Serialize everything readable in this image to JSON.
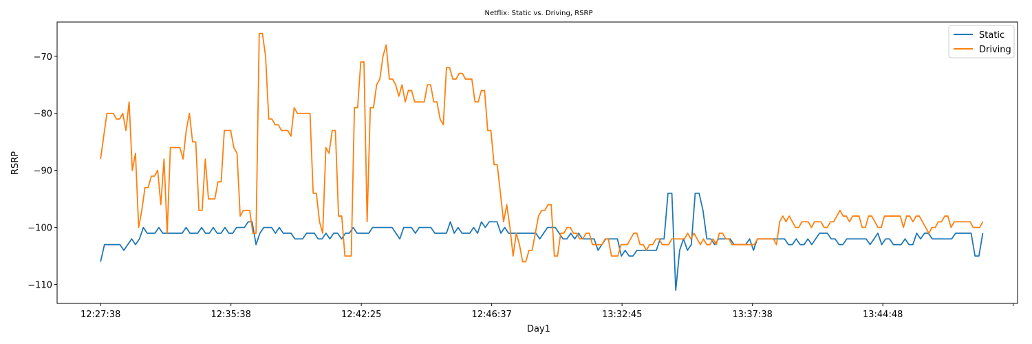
{
  "chart_data": {
    "type": "line",
    "title": "Netflix: Static vs. Driving, RSRP",
    "xlabel": "Day1",
    "ylabel": "RSRP",
    "x_tick_labels": [
      "12:27:38",
      "12:35:38",
      "12:42:25",
      "12:46:37",
      "13:32:45",
      "13:37:38",
      "13:44:48",
      ""
    ],
    "x_tick_positions": [
      0,
      30,
      60,
      90,
      120,
      150,
      180,
      210
    ],
    "xlim": [
      -10,
      211
    ],
    "y_ticks": [
      -110,
      -100,
      -90,
      -80,
      -70
    ],
    "y_tick_labels": [
      "−110",
      "−100",
      "−90",
      "−80",
      "−70"
    ],
    "ylim": [
      -113.3,
      -64.0
    ],
    "grid": false,
    "legend_position": "top-right",
    "series": [
      {
        "name": "Static",
        "color": "#1f77b4",
        "values": [
          -106,
          -103,
          -103,
          -103,
          -103,
          -103,
          -104,
          -103,
          -102,
          -103,
          -102,
          -100,
          -101,
          -101,
          -101,
          -100,
          -101,
          -101,
          -101,
          -101,
          -101,
          -101,
          -100,
          -101,
          -101,
          -101,
          -100,
          -101,
          -101,
          -100,
          -101,
          -101,
          -100,
          -101,
          -101,
          -100,
          -100,
          -100,
          -99,
          -99,
          -103,
          -101,
          -100,
          -100,
          -100,
          -101,
          -100,
          -101,
          -101,
          -101,
          -102,
          -102,
          -102,
          -101,
          -101,
          -101,
          -102,
          -102,
          -101,
          -102,
          -101,
          -101,
          -102,
          -101,
          -101,
          -100,
          -101,
          -101,
          -101,
          -101,
          -100,
          -100,
          -100,
          -100,
          -100,
          -100,
          -101,
          -102,
          -100,
          -100,
          -100,
          -101,
          -100,
          -100,
          -100,
          -100,
          -101,
          -101,
          -101,
          -101,
          -99,
          -101,
          -100,
          -101,
          -101,
          -101,
          -100,
          -101,
          -99,
          -100,
          -99,
          -99,
          -99,
          -101,
          -100,
          -101,
          -101,
          -101,
          -101,
          -101,
          -101,
          -101,
          -101,
          -102,
          -101,
          -100,
          -100,
          -100,
          -101,
          -102,
          -102,
          -101,
          -102,
          -101,
          -102,
          -102,
          -102,
          -102,
          -104,
          -103,
          -102,
          -102,
          -102,
          -102,
          -105,
          -104,
          -105,
          -105,
          -104,
          -104,
          -104,
          -104,
          -104,
          -104,
          -102,
          -102,
          -94,
          -94,
          -111,
          -104,
          -102,
          -104,
          -103,
          -94,
          -94,
          -97,
          -102,
          -102,
          -103,
          -102,
          -102,
          -102,
          -102,
          -103,
          -103,
          -103,
          -103,
          -102,
          -104,
          -102,
          -102,
          -102,
          -102,
          -102,
          -102,
          -102,
          -102,
          -103,
          -103,
          -102,
          -103,
          -103,
          -102,
          -103,
          -102,
          -101,
          -101,
          -101,
          -102,
          -102,
          -103,
          -103,
          -102,
          -102,
          -102,
          -102,
          -102,
          -102,
          -103,
          -102,
          -101,
          -103,
          -102,
          -102,
          -103,
          -103,
          -103,
          -102,
          -103,
          -103,
          -101,
          -102,
          -101,
          -101,
          -102,
          -102,
          -102,
          -102,
          -102,
          -102,
          -101,
          -101,
          -101,
          -101,
          -101,
          -105,
          -105,
          -101
        ]
      },
      {
        "name": "Driving",
        "color": "#ff7f0e",
        "values": [
          -88,
          -84,
          -80,
          -80,
          -80,
          -81,
          -81,
          -80,
          -83,
          -78,
          -90,
          -87,
          -100,
          -97,
          -93,
          -93,
          -91,
          -91,
          -90,
          -96,
          -88,
          -101,
          -86,
          -86,
          -86,
          -86,
          -88,
          -83,
          -80,
          -85,
          -85,
          -97,
          -97,
          -88,
          -95,
          -95,
          -95,
          -92,
          -92,
          -83,
          -83,
          -83,
          -86,
          -87,
          -98,
          -97,
          -97,
          -97,
          -101,
          -101,
          -66,
          -66,
          -70,
          -81,
          -81,
          -82,
          -82,
          -83,
          -83,
          -83,
          -84,
          -79,
          -80,
          -80,
          -80,
          -80,
          -80,
          -94,
          -94,
          -99,
          -101,
          -86,
          -87,
          -83,
          -83,
          -98,
          -98,
          -105,
          -105,
          -105,
          -79,
          -79,
          -71,
          -71,
          -99,
          -79,
          -79,
          -75,
          -74,
          -70,
          -68,
          -74,
          -74,
          -75,
          -77,
          -75,
          -78,
          -76,
          -76,
          -78,
          -78,
          -78,
          -78,
          -75,
          -75,
          -78,
          -78,
          -81,
          -82,
          -72,
          -72,
          -74,
          -74,
          -73,
          -73,
          -74,
          -74,
          -74,
          -78,
          -78,
          -76,
          -76,
          -83,
          -83,
          -89,
          -89,
          -94,
          -99,
          -96,
          -100,
          -105,
          -101,
          -103,
          -106,
          -106,
          -104,
          -104,
          -101,
          -98,
          -97,
          -97,
          -96,
          -96,
          -105,
          -105,
          -101,
          -101,
          -100,
          -100,
          -101,
          -101,
          -102,
          -102,
          -101,
          -101,
          -103,
          -103,
          -103,
          -103,
          -102,
          -102,
          -105,
          -105,
          -105,
          -103,
          -103,
          -103,
          -102,
          -101,
          -101,
          -103,
          -103,
          -104,
          -103,
          -103,
          -102,
          -102,
          -103,
          -103,
          -103,
          -102,
          -102,
          -102,
          -102,
          -102,
          -101,
          -102,
          -101,
          -102,
          -103,
          -102,
          -103,
          -103,
          -102,
          -103,
          -101,
          -101,
          -102,
          -102,
          -103,
          -103,
          -103,
          -103,
          -103,
          -103,
          -103,
          -103,
          -102,
          -102,
          -102,
          -102,
          -102,
          -102,
          -103,
          -99,
          -98,
          -99,
          -98,
          -99,
          -100,
          -100,
          -99,
          -99,
          -99,
          -100,
          -99,
          -99,
          -99,
          -100,
          -100,
          -99,
          -99,
          -98,
          -97,
          -98,
          -98,
          -99,
          -98,
          -98,
          -98,
          -100,
          -100,
          -98,
          -98,
          -99,
          -100,
          -100,
          -98,
          -98,
          -98,
          -98,
          -98,
          -98,
          -100,
          -98,
          -98,
          -99,
          -98,
          -98,
          -99,
          -100,
          -101,
          -100,
          -100,
          -99,
          -99,
          -98,
          -98,
          -100,
          -99,
          -99,
          -99,
          -99,
          -99,
          -99,
          -100,
          -100,
          -100,
          -99
        ]
      }
    ]
  }
}
